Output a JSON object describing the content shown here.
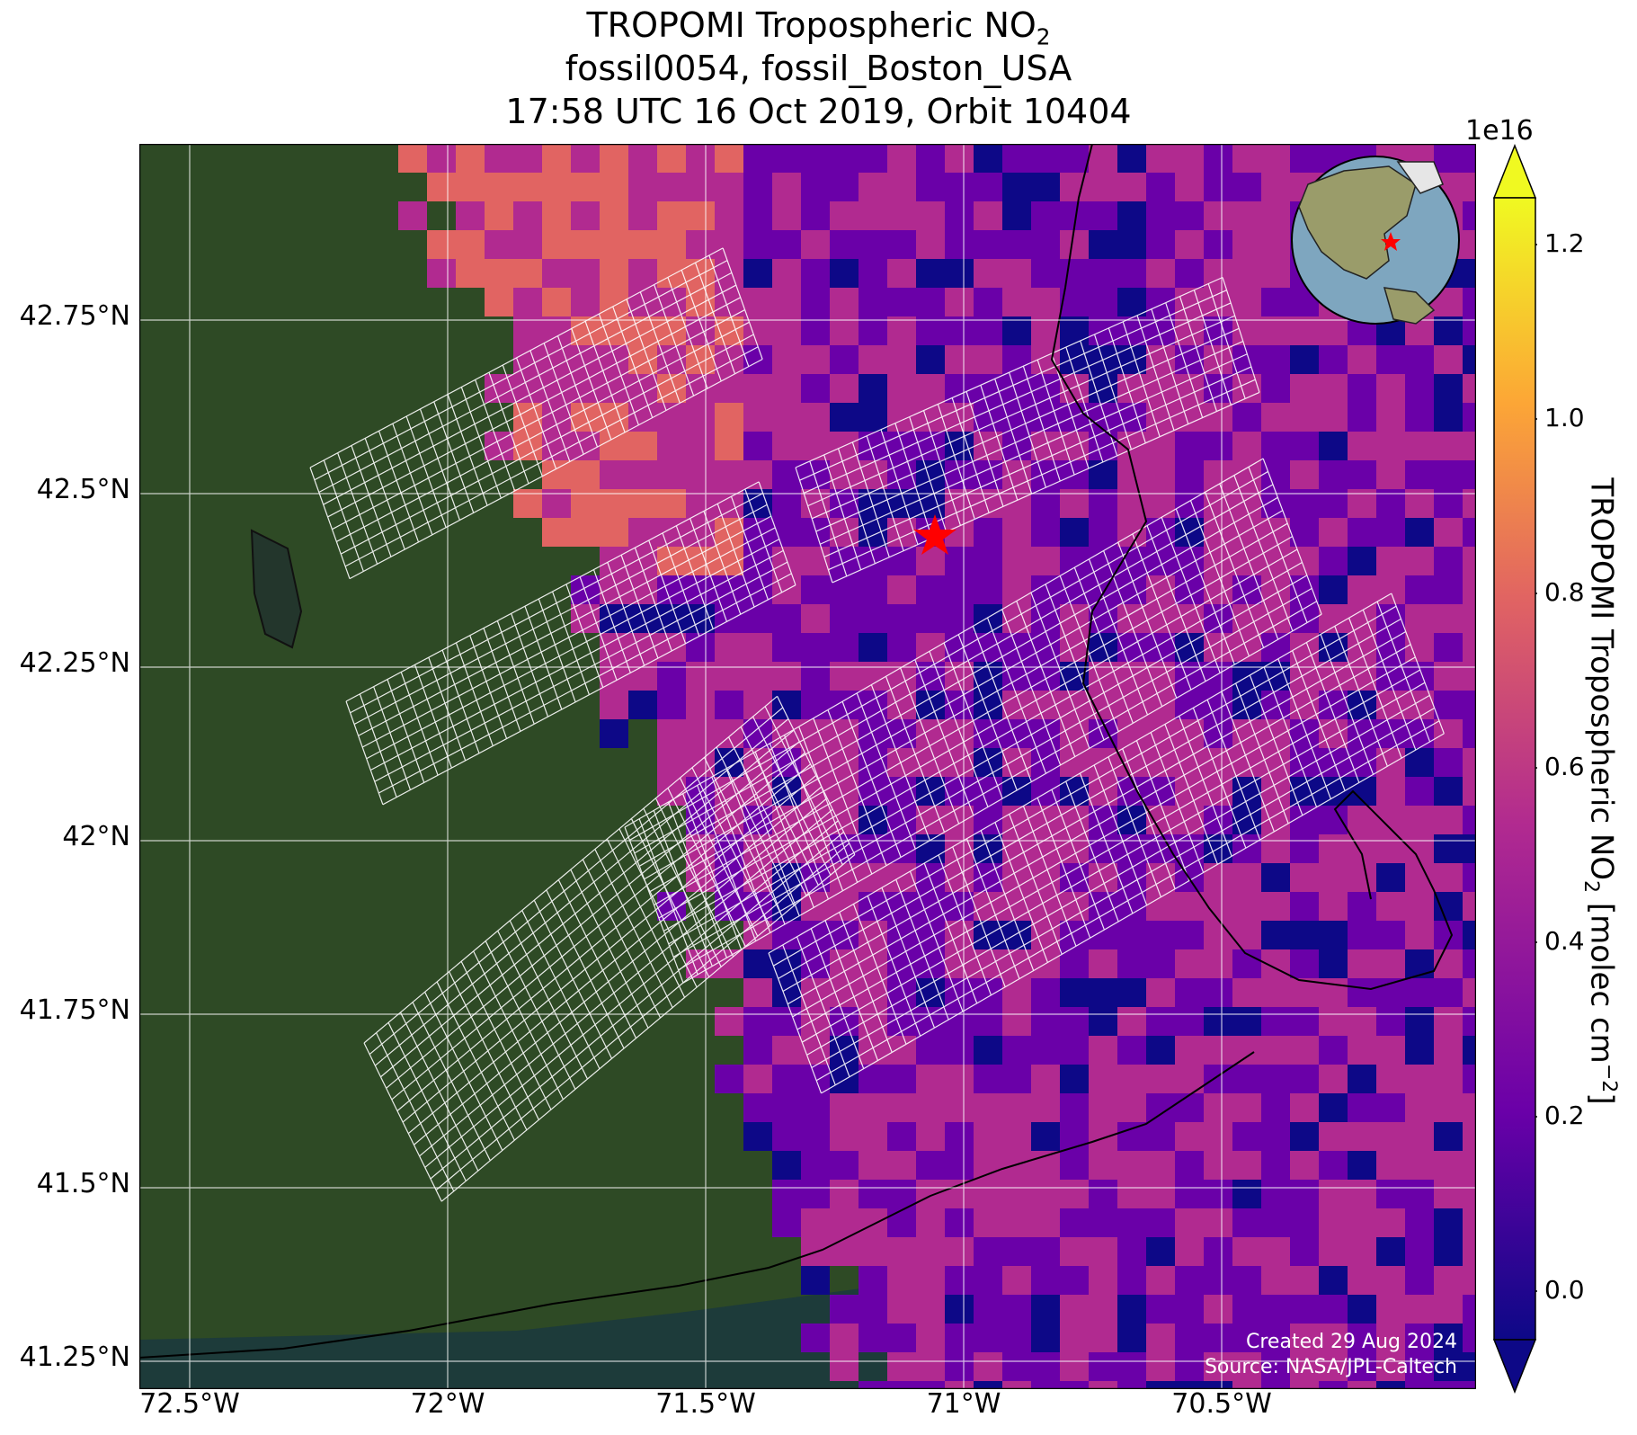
{
  "title": {
    "line1_prefix": "TROPOMI Tropospheric NO",
    "line1_sub": "2",
    "line2": "fossil0054, fossil_Boston_USA",
    "line3": "17:58 UTC 16 Oct 2019, Orbit 10404"
  },
  "axes": {
    "lon_ticks": [
      "72.5°W",
      "72°W",
      "71.5°W",
      "71°W",
      "70.5°W"
    ],
    "lat_ticks": [
      "42.75°N",
      "42.5°N",
      "42.25°N",
      "42°N",
      "41.75°N",
      "41.5°N",
      "41.25°N"
    ]
  },
  "colorbar": {
    "exponent": "1e16",
    "label_prefix": "TROPOMI Tropospheric NO",
    "label_sub": "2",
    "label_mid": " [molec cm",
    "label_sup": "−2",
    "label_suffix": "]",
    "ticks": [
      "1.2",
      "1.0",
      "0.8",
      "0.6",
      "0.4",
      "0.2",
      "0.0"
    ],
    "colors": [
      "#0d0887",
      "#6a00a8",
      "#b12a90",
      "#e16462",
      "#fca636",
      "#f0f921"
    ]
  },
  "credits": {
    "created": "Created 29 Aug 2024",
    "source": "Source: NASA/JPL-Caltech"
  },
  "target_marker": {
    "icon": "red-star-icon",
    "color": "#ff0000"
  }
}
